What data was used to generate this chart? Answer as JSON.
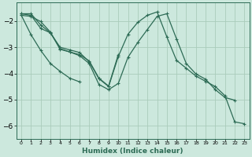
{
  "xlabel": "Humidex (Indice chaleur)",
  "background_color": "#cce8dd",
  "grid_color": "#aaccbb",
  "line_color": "#2d6b55",
  "xlim": [
    -0.5,
    23.5
  ],
  "ylim": [
    -6.5,
    -1.3
  ],
  "yticks": [
    -6,
    -5,
    -4,
    -3,
    -2
  ],
  "xticks": [
    0,
    1,
    2,
    3,
    4,
    5,
    6,
    7,
    8,
    9,
    10,
    11,
    12,
    13,
    14,
    15,
    16,
    17,
    18,
    19,
    20,
    21,
    22,
    23
  ],
  "series1_x": [
    0,
    1,
    2,
    3,
    4,
    5,
    6,
    7,
    8,
    9,
    10,
    11,
    12,
    13,
    14,
    15,
    16,
    17,
    18,
    19,
    20,
    21,
    22,
    23
  ],
  "series1_y": [
    -1.72,
    -1.72,
    -2.15,
    -2.45,
    -3.0,
    -3.1,
    -3.2,
    -3.55,
    -4.2,
    -4.5,
    -3.35,
    -2.5,
    -2.05,
    -1.78,
    -1.65,
    -2.6,
    -3.5,
    -3.8,
    -4.1,
    -4.3,
    -4.5,
    -4.85,
    -5.85,
    -5.92
  ],
  "series2_x": [
    0,
    1,
    2,
    3,
    4,
    5,
    6,
    7,
    8,
    9,
    10,
    11,
    12,
    13,
    14,
    15,
    16,
    17,
    18,
    19,
    20,
    21,
    22
  ],
  "series2_y": [
    -1.72,
    -1.78,
    -2.28,
    -2.45,
    -3.05,
    -3.18,
    -3.32,
    -3.62,
    -4.42,
    -4.62,
    -4.38,
    -3.38,
    -2.82,
    -2.32,
    -1.82,
    -1.72,
    -2.68,
    -3.62,
    -4.02,
    -4.22,
    -4.62,
    -4.92,
    -5.02
  ],
  "series3_x": [
    0,
    1,
    2,
    3,
    4,
    5,
    6
  ],
  "series3_y": [
    -1.78,
    -2.52,
    -3.12,
    -3.62,
    -3.92,
    -4.18,
    -4.32
  ],
  "series4_x": [
    0,
    1,
    2,
    3,
    4,
    5,
    6,
    7,
    8,
    9,
    10
  ],
  "series4_y": [
    -1.78,
    -1.82,
    -2.02,
    -2.42,
    -3.08,
    -3.18,
    -3.28,
    -3.52,
    -4.18,
    -4.48,
    -3.28
  ]
}
